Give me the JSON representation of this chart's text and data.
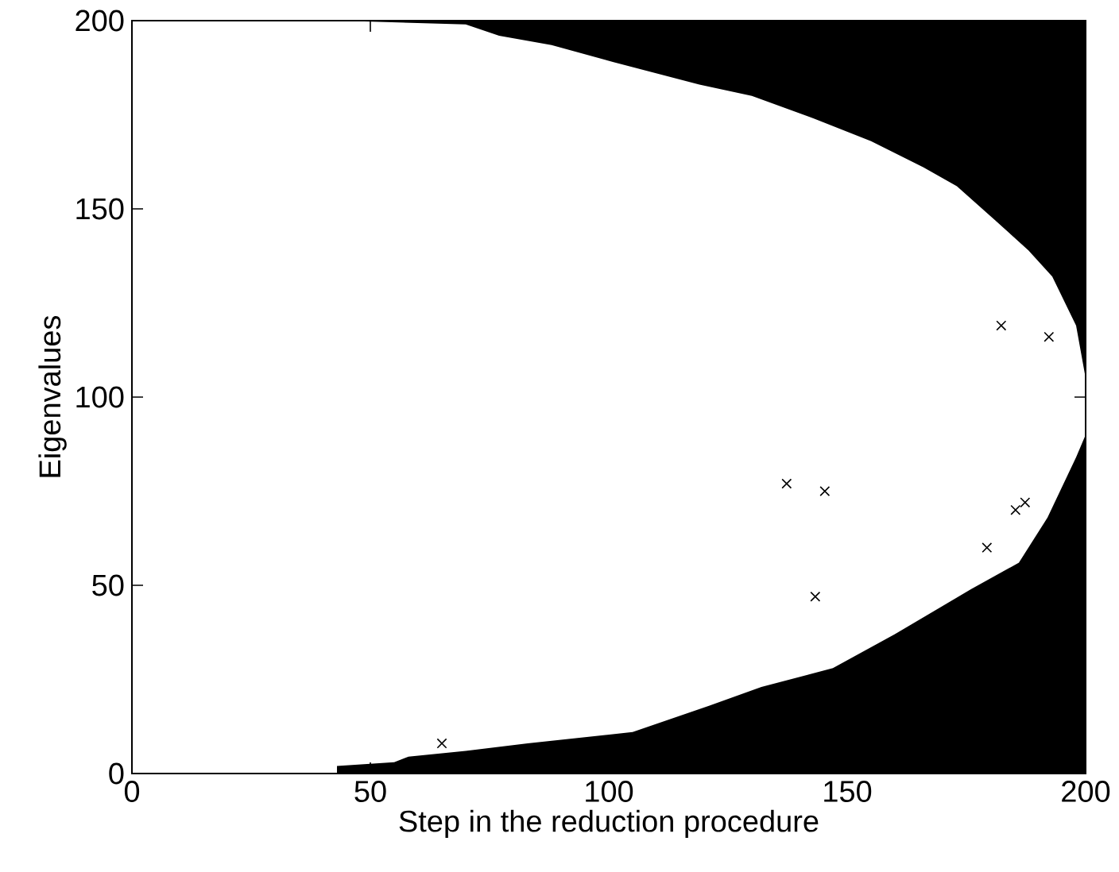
{
  "chart_data": {
    "type": "scatter",
    "xlabel": "Step in the reduction procedure",
    "ylabel": "Eigenvalues",
    "xlim": [
      0,
      200
    ],
    "ylim": [
      0,
      200
    ],
    "xticks": [
      0,
      50,
      100,
      150,
      200
    ],
    "yticks": [
      0,
      50,
      100,
      150,
      200
    ],
    "grid": false,
    "series": [
      {
        "type": "area",
        "color": "#000000",
        "x": [
          43,
          55,
          58,
          70,
          83,
          105,
          121,
          132,
          147,
          160,
          176,
          186,
          192,
          198,
          200
        ],
        "values": [
          2,
          3,
          4.5,
          6,
          8,
          11,
          18,
          23,
          28,
          37,
          49,
          56,
          68,
          84,
          90
        ]
      },
      {
        "type": "area",
        "color": "#000000",
        "x": [
          43,
          70,
          77,
          88,
          101,
          119,
          130,
          143,
          155,
          166,
          173,
          181,
          188,
          193,
          198,
          200,
          200,
          43
        ],
        "values": [
          200,
          199,
          196,
          193.5,
          189,
          183,
          180,
          174,
          168,
          161,
          156,
          147,
          139,
          132,
          119,
          105,
          200,
          200
        ]
      },
      {
        "color": "#000000",
        "marker": "cross",
        "x": [
          65,
          137.3,
          145.3,
          143.3,
          179.3,
          185.3,
          187.3,
          182.3,
          192.3
        ],
        "values": [
          8,
          77,
          75,
          47,
          60,
          70,
          72,
          119,
          116
        ]
      }
    ]
  }
}
